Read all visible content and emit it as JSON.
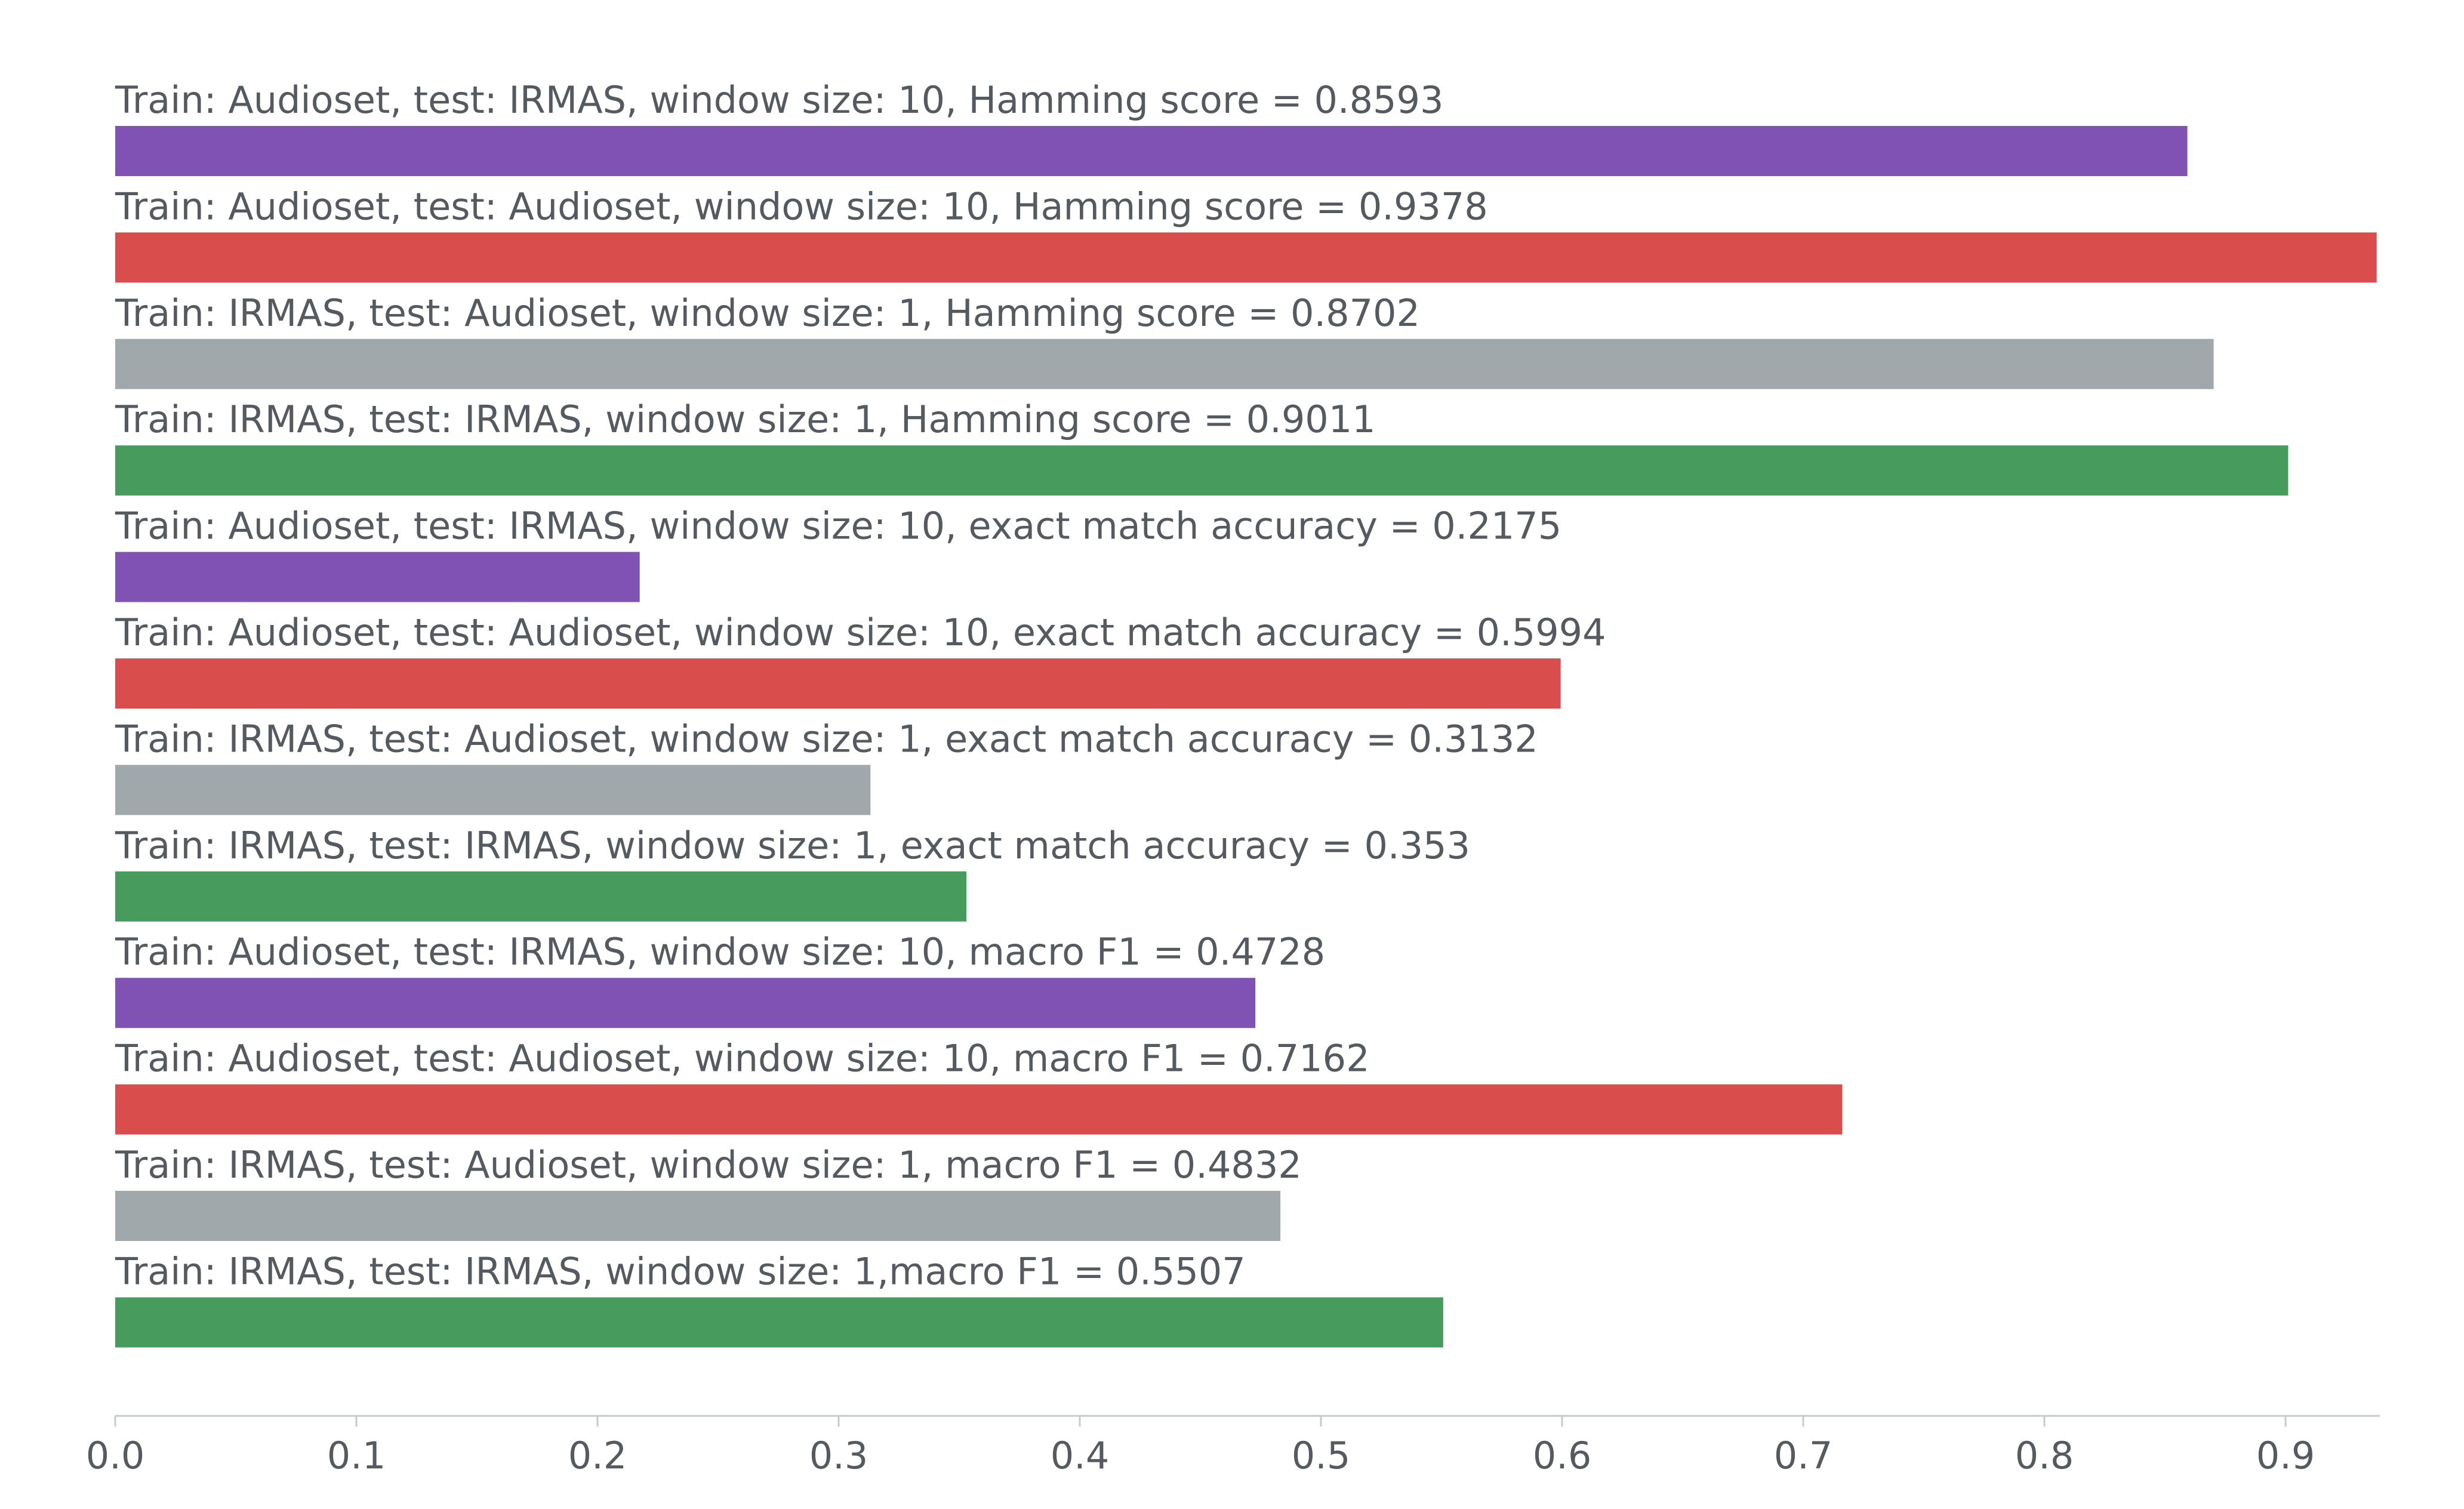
{
  "chart_data": {
    "type": "bar",
    "orientation": "horizontal",
    "title": "",
    "xlabel": "",
    "ylabel": "",
    "xlim": [
      0,
      0.94
    ],
    "grid": false,
    "legend": "none",
    "x_ticks": [
      "0.0",
      "0.1",
      "0.2",
      "0.3",
      "0.4",
      "0.5",
      "0.6",
      "0.7",
      "0.8",
      "0.9"
    ],
    "x_tick_values": [
      0.0,
      0.1,
      0.2,
      0.3,
      0.4,
      0.5,
      0.6,
      0.7,
      0.8,
      0.9
    ],
    "colors": {
      "purple": "#7f52b3",
      "red": "#d94d4d",
      "gray": "#a0a8ab",
      "green": "#469b5d"
    },
    "bars": [
      {
        "label": "Train: Audioset, test: IRMAS, window size: 10, Hamming score = 0.8593",
        "value": 0.8593,
        "color": "#7f52b3"
      },
      {
        "label": "Train: Audioset, test: Audioset, window size: 10, Hamming score = 0.9378",
        "value": 0.9378,
        "color": "#d94d4d"
      },
      {
        "label": "Train: IRMAS, test: Audioset, window size: 1, Hamming score = 0.8702",
        "value": 0.8702,
        "color": "#a0a8ab"
      },
      {
        "label": "Train: IRMAS, test: IRMAS, window size: 1, Hamming score = 0.9011",
        "value": 0.9011,
        "color": "#469b5d"
      },
      {
        "label": "Train: Audioset, test: IRMAS, window size: 10, exact match accuracy = 0.2175",
        "value": 0.2175,
        "color": "#7f52b3"
      },
      {
        "label": "Train: Audioset, test: Audioset, window size: 10, exact match accuracy = 0.5994",
        "value": 0.5994,
        "color": "#d94d4d"
      },
      {
        "label": "Train: IRMAS, test: Audioset, window size: 1, exact match accuracy = 0.3132",
        "value": 0.3132,
        "color": "#a0a8ab"
      },
      {
        "label": "Train: IRMAS, test: IRMAS, window size: 1, exact match accuracy = 0.353",
        "value": 0.353,
        "color": "#469b5d"
      },
      {
        "label": "Train: Audioset, test: IRMAS, window size: 10, macro F1 = 0.4728",
        "value": 0.4728,
        "color": "#7f52b3"
      },
      {
        "label": "Train: Audioset, test: Audioset, window size: 10, macro F1 = 0.7162",
        "value": 0.7162,
        "color": "#d94d4d"
      },
      {
        "label": "Train: IRMAS, test: Audioset, window size: 1, macro F1 = 0.4832",
        "value": 0.4832,
        "color": "#a0a8ab"
      },
      {
        "label": "Train: IRMAS, test: IRMAS, window size: 1,macro F1 = 0.5507",
        "value": 0.5507,
        "color": "#469b5d"
      }
    ]
  }
}
